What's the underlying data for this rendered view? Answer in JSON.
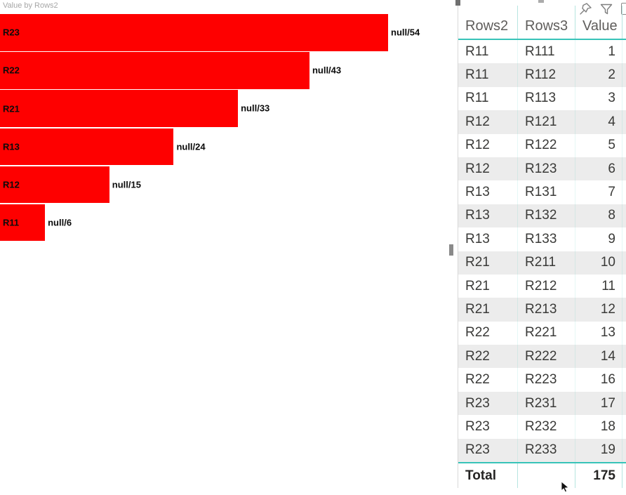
{
  "chart": {
    "title": "Value by Rows2"
  },
  "chart_data": {
    "type": "bar",
    "orientation": "horizontal",
    "title": "Value by Rows2",
    "categories": [
      "R23",
      "R22",
      "R21",
      "R13",
      "R12",
      "R11"
    ],
    "values": [
      54,
      43,
      33,
      24,
      15,
      6
    ],
    "data_labels": [
      "null/54",
      "null/43",
      "null/33",
      "null/24",
      "null/15",
      "null/6"
    ],
    "bar_color": "#fe0000",
    "xlim": [
      0,
      54
    ],
    "sort": "descending",
    "grid": false,
    "legend": "none"
  },
  "visual_header": {
    "icons": [
      "pin-icon",
      "filter-icon",
      "more-options-icon"
    ]
  },
  "table": {
    "columns": [
      "Rows2",
      "Rows3",
      "Value"
    ],
    "rows": [
      [
        "R11",
        "R111",
        "1"
      ],
      [
        "R11",
        "R112",
        "2"
      ],
      [
        "R11",
        "R113",
        "3"
      ],
      [
        "R12",
        "R121",
        "4"
      ],
      [
        "R12",
        "R122",
        "5"
      ],
      [
        "R12",
        "R123",
        "6"
      ],
      [
        "R13",
        "R131",
        "7"
      ],
      [
        "R13",
        "R132",
        "8"
      ],
      [
        "R13",
        "R133",
        "9"
      ],
      [
        "R21",
        "R211",
        "10"
      ],
      [
        "R21",
        "R212",
        "11"
      ],
      [
        "R21",
        "R213",
        "12"
      ],
      [
        "R22",
        "R221",
        "13"
      ],
      [
        "R22",
        "R222",
        "14"
      ],
      [
        "R22",
        "R223",
        "16"
      ],
      [
        "R23",
        "R231",
        "17"
      ],
      [
        "R23",
        "R232",
        "18"
      ],
      [
        "R23",
        "R233",
        "19"
      ]
    ],
    "total": {
      "label": "Total",
      "value": "175"
    }
  },
  "colors": {
    "bar_red": "#fe0000",
    "accent_teal": "#38c3b8",
    "grid_teal": "#b6e5e0",
    "row_alt": "#ececec",
    "title_gray": "#a6a6a6",
    "header_text": "#5f5d5b",
    "cell_text": "#3a3a38"
  }
}
